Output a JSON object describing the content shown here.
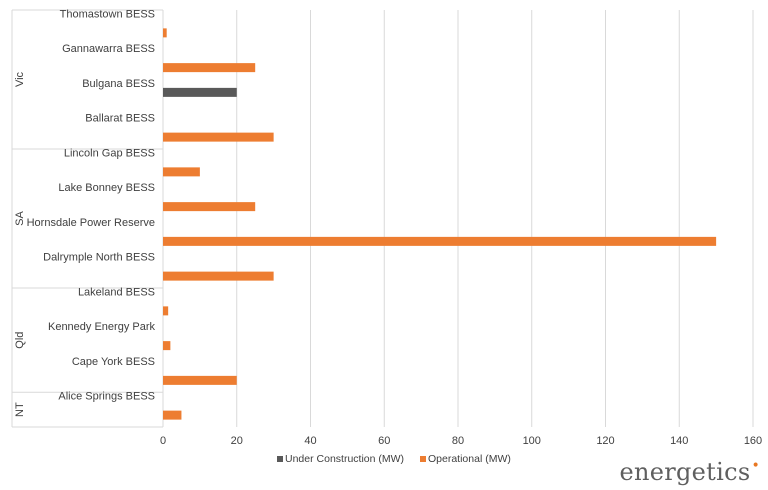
{
  "chart_data": {
    "type": "bar",
    "orientation": "horizontal",
    "title": "",
    "xlabel": "",
    "ylabel": "",
    "groups": [
      {
        "name": "Vic",
        "categories": [
          "Thomastown BESS",
          "Gannawarra BESS",
          "Bulgana BESS",
          "Ballarat BESS"
        ]
      },
      {
        "name": "SA",
        "categories": [
          "Lincoln Gap BESS",
          "Lake Bonney BESS",
          "Hornsdale Power Reserve",
          "Dalrymple North BESS"
        ]
      },
      {
        "name": "Qld",
        "categories": [
          "Lakeland BESS",
          "Kennedy Energy Park",
          "Cape York BESS"
        ]
      },
      {
        "name": "NT",
        "categories": [
          "Alice Springs BESS"
        ]
      }
    ],
    "categories": [
      "Thomastown BESS",
      "Gannawarra BESS",
      "Bulgana BESS",
      "Ballarat BESS",
      "Lincoln Gap BESS",
      "Lake Bonney BESS",
      "Hornsdale Power Reserve",
      "Dalrymple North BESS",
      "Lakeland BESS",
      "Kennedy Energy Park",
      "Cape York BESS",
      "Alice Springs BESS"
    ],
    "series": [
      {
        "name": "Under Construction (MW)",
        "color": "#595959",
        "values": [
          0,
          0,
          20,
          0,
          0,
          0,
          0,
          0,
          0,
          0,
          0,
          0
        ]
      },
      {
        "name": "Operational (MW)",
        "color": "#ed7d31",
        "values": [
          1,
          25,
          0,
          30,
          10,
          25,
          150,
          30,
          1.4,
          2,
          20,
          5
        ]
      }
    ],
    "xlim": [
      0,
      160
    ],
    "xticks": [
      0,
      20,
      40,
      60,
      80,
      100,
      120,
      140,
      160
    ],
    "grid": true,
    "legend": "bottom"
  },
  "branding": {
    "logo_text": "energetics",
    "logo_mark": "•"
  }
}
